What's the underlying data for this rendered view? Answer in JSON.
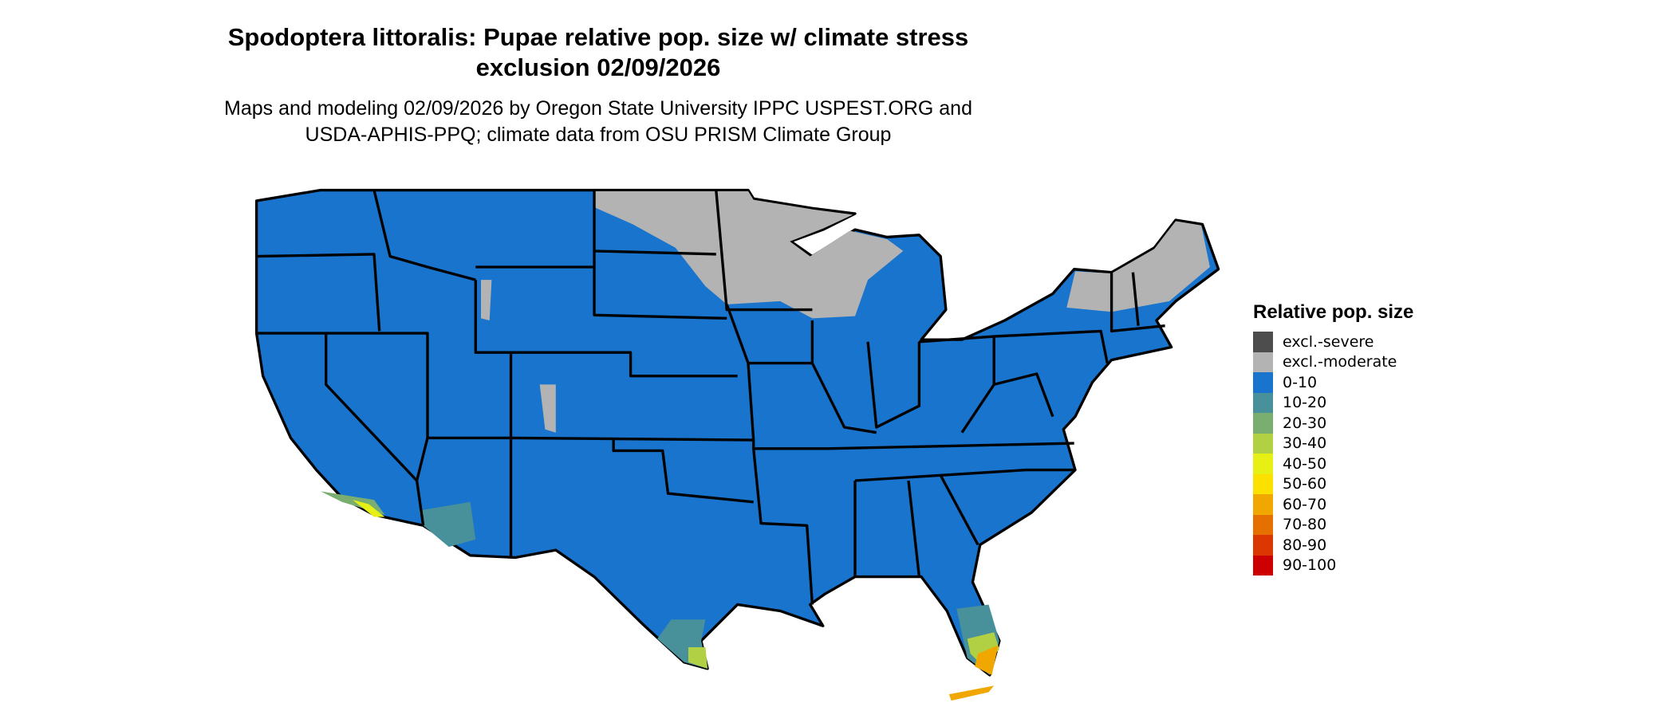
{
  "title_line1": "Spodoptera littoralis: Pupae relative pop. size w/ climate stress",
  "title_line2": "exclusion 02/09/2026",
  "subtitle_line1": "Maps and modeling 02/09/2026 by Oregon State University IPPC USPEST.ORG and",
  "subtitle_line2": "USDA-APHIS-PPQ; climate data from OSU PRISM Climate Group",
  "legend": {
    "title": "Relative pop. size",
    "items": [
      {
        "label": "excl.-severe",
        "color": "#4d4d4d"
      },
      {
        "label": "excl.-moderate",
        "color": "#b3b3b3"
      },
      {
        "label": "0-10",
        "color": "#1874cd"
      },
      {
        "label": "10-20",
        "color": "#48919b"
      },
      {
        "label": "20-30",
        "color": "#7aae70"
      },
      {
        "label": "30-40",
        "color": "#b2d043"
      },
      {
        "label": "40-50",
        "color": "#e6f015"
      },
      {
        "label": "50-60",
        "color": "#fbe000"
      },
      {
        "label": "60-70",
        "color": "#f0a800"
      },
      {
        "label": "70-80",
        "color": "#e57000"
      },
      {
        "label": "80-90",
        "color": "#da3800"
      },
      {
        "label": "90-100",
        "color": "#cc0000"
      }
    ]
  }
}
